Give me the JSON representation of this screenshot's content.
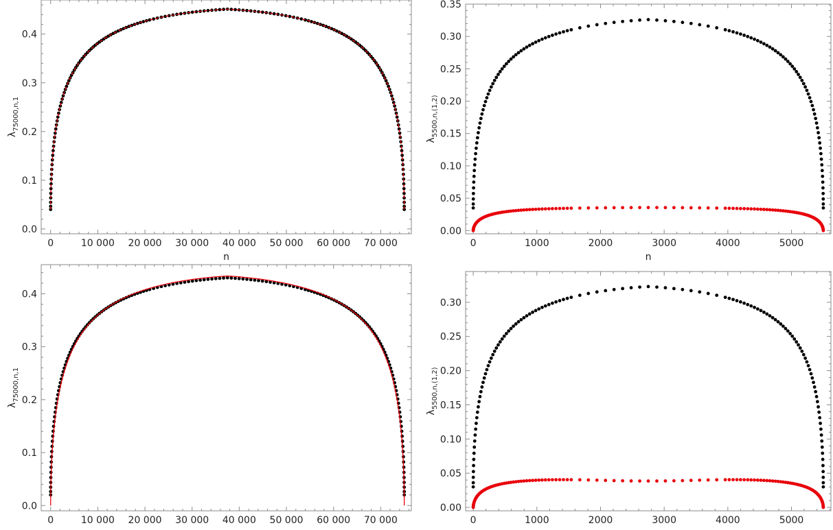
{
  "chart_data": [
    {
      "type": "scatter",
      "xlabel": "n",
      "ylabel": "λ75000,n,1",
      "ylabel_main": "λ",
      "ylabel_sub": "75000,n,1",
      "xlim": [
        -2000,
        76500
      ],
      "ylim": [
        -0.01,
        0.47
      ],
      "xticks": [
        0,
        10000,
        20000,
        30000,
        40000,
        50000,
        60000,
        70000
      ],
      "xtick_labels": [
        "0",
        "10 000",
        "20 000",
        "30 000",
        "40 000",
        "50 000",
        "60 000",
        "70 000"
      ],
      "yticks": [
        0.0,
        0.1,
        0.2,
        0.3,
        0.4
      ],
      "ytick_labels": [
        "0.0",
        "0.1",
        "0.2",
        "0.3",
        "0.4"
      ],
      "grid": false,
      "series": [
        {
          "color": "#000000",
          "style": "points",
          "N": 75000,
          "peak": 0.461,
          "end_min": 0.04
        },
        {
          "color": "#e8000b",
          "style": "dashed-line",
          "N": 75000,
          "peak": 0.461,
          "end_min": 0.04
        }
      ]
    },
    {
      "type": "scatter",
      "xlabel": "n",
      "ylabel": "λ5500,n,(1,2)",
      "ylabel_main": "λ",
      "ylabel_sub": "5500,n,(1,2)",
      "xlim": [
        -120,
        5620
      ],
      "ylim": [
        -0.005,
        0.35
      ],
      "xticks": [
        0,
        1000,
        2000,
        3000,
        4000,
        5000
      ],
      "xtick_labels": [
        "0",
        "1000",
        "2000",
        "3000",
        "4000",
        "5000"
      ],
      "yticks": [
        0.0,
        0.05,
        0.1,
        0.15,
        0.2,
        0.25,
        0.3,
        0.35
      ],
      "ytick_labels": [
        "0.00",
        "0.05",
        "0.10",
        "0.15",
        "0.20",
        "0.25",
        "0.30",
        "0.35"
      ],
      "grid": false,
      "series": [
        {
          "color": "#000000",
          "style": "points",
          "N": 5500,
          "peak": 0.333,
          "end_min": 0.035
        },
        {
          "color": "#e8000b",
          "style": "points",
          "N": 5500,
          "peak": 0.036,
          "end_min": 0.0
        }
      ]
    },
    {
      "type": "scatter",
      "xlabel": "n",
      "ylabel": "λ75000,n,1",
      "ylabel_main": "λ",
      "ylabel_sub": "75000,n,1",
      "xlim": [
        -2000,
        76500
      ],
      "ylim": [
        -0.01,
        0.455
      ],
      "xticks": [
        0,
        10000,
        20000,
        30000,
        40000,
        50000,
        60000,
        70000
      ],
      "xtick_labels": [
        "0",
        "10 000",
        "20 000",
        "30 000",
        "40 000",
        "50 000",
        "60 000",
        "70 000"
      ],
      "yticks": [
        0.0,
        0.1,
        0.2,
        0.3,
        0.4
      ],
      "ytick_labels": [
        "0.0",
        "0.1",
        "0.2",
        "0.3",
        "0.4"
      ],
      "grid": false,
      "series": [
        {
          "color": "#000000",
          "style": "points",
          "N": 75000,
          "peak": 0.44,
          "end_min": 0.02
        },
        {
          "color": "#e8000b",
          "style": "solid-line",
          "N": 75000,
          "peak": 0.444,
          "end_min": 0.0
        }
      ]
    },
    {
      "type": "scatter",
      "xlabel": "n",
      "ylabel": "λ5500,n,(1,2)",
      "ylabel_main": "λ",
      "ylabel_sub": "5500,n,(1,2)",
      "xlim": [
        -120,
        5620
      ],
      "ylim": [
        -0.005,
        0.345
      ],
      "xticks": [
        0,
        1000,
        2000,
        3000,
        4000,
        5000
      ],
      "xtick_labels": [
        "0",
        "1000",
        "2000",
        "3000",
        "4000",
        "5000"
      ],
      "yticks": [
        0.0,
        0.05,
        0.1,
        0.15,
        0.2,
        0.25,
        0.3
      ],
      "ytick_labels": [
        "0.00",
        "0.05",
        "0.10",
        "0.15",
        "0.20",
        "0.25",
        "0.30"
      ],
      "grid": false,
      "series": [
        {
          "color": "#000000",
          "style": "points",
          "N": 5500,
          "peak": 0.33,
          "end_min": 0.03
        },
        {
          "color": "#e8000b",
          "style": "points",
          "N": 5500,
          "peak": 0.044,
          "end_min": 0.0,
          "dip": 0.039
        }
      ]
    }
  ]
}
